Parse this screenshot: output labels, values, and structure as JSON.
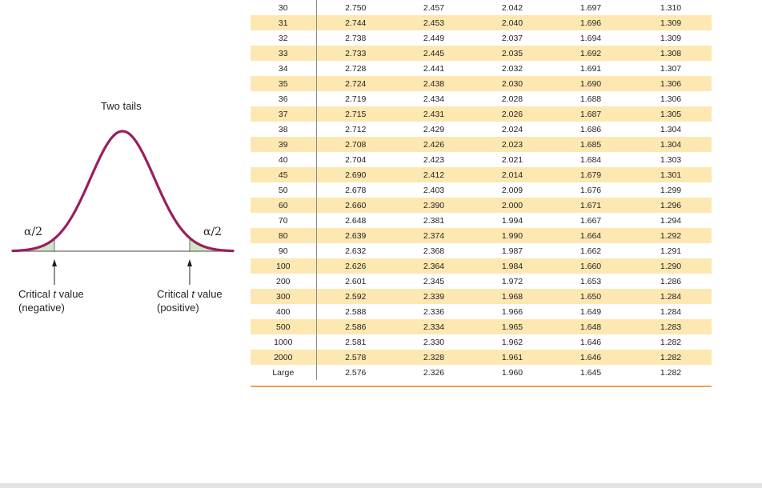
{
  "figure": {
    "title": "Two tails",
    "alpha_left": "α/2",
    "alpha_right": "α/2",
    "critical_left": {
      "line1_prefix": "Critical ",
      "line1_var": "t",
      "line1_suffix": " value",
      "line2": "(negative)"
    },
    "critical_right": {
      "line1_prefix": "Critical ",
      "line1_var": "t",
      "line1_suffix": " value",
      "line2": "(positive)"
    },
    "colors": {
      "curve": "#9b1e5e",
      "tail_fill": "#cde8c3",
      "axis": "#6d6e70"
    }
  },
  "table": {
    "shade_color": "#fde8b2",
    "rows": [
      {
        "df": "30",
        "values": [
          "2.750",
          "2.457",
          "2.042",
          "1.697",
          "1.310"
        ]
      },
      {
        "df": "31",
        "values": [
          "2.744",
          "2.453",
          "2.040",
          "1.696",
          "1.309"
        ]
      },
      {
        "df": "32",
        "values": [
          "2.738",
          "2.449",
          "2.037",
          "1.694",
          "1.309"
        ]
      },
      {
        "df": "33",
        "values": [
          "2.733",
          "2.445",
          "2.035",
          "1.692",
          "1.308"
        ]
      },
      {
        "df": "34",
        "values": [
          "2.728",
          "2.441",
          "2.032",
          "1.691",
          "1.307"
        ]
      },
      {
        "df": "35",
        "values": [
          "2.724",
          "2.438",
          "2.030",
          "1.690",
          "1.306"
        ]
      },
      {
        "df": "36",
        "values": [
          "2.719",
          "2.434",
          "2.028",
          "1.688",
          "1.306"
        ]
      },
      {
        "df": "37",
        "values": [
          "2.715",
          "2.431",
          "2.026",
          "1.687",
          "1.305"
        ]
      },
      {
        "df": "38",
        "values": [
          "2.712",
          "2.429",
          "2.024",
          "1.686",
          "1.304"
        ]
      },
      {
        "df": "39",
        "values": [
          "2.708",
          "2.426",
          "2.023",
          "1.685",
          "1.304"
        ]
      },
      {
        "df": "40",
        "values": [
          "2.704",
          "2.423",
          "2.021",
          "1.684",
          "1.303"
        ]
      },
      {
        "df": "45",
        "values": [
          "2.690",
          "2.412",
          "2.014",
          "1.679",
          "1.301"
        ]
      },
      {
        "df": "50",
        "values": [
          "2.678",
          "2.403",
          "2.009",
          "1.676",
          "1.299"
        ]
      },
      {
        "df": "60",
        "values": [
          "2.660",
          "2.390",
          "2.000",
          "1.671",
          "1.296"
        ]
      },
      {
        "df": "70",
        "values": [
          "2.648",
          "2.381",
          "1.994",
          "1.667",
          "1.294"
        ]
      },
      {
        "df": "80",
        "values": [
          "2.639",
          "2.374",
          "1.990",
          "1.664",
          "1.292"
        ]
      },
      {
        "df": "90",
        "values": [
          "2.632",
          "2.368",
          "1.987",
          "1.662",
          "1.291"
        ]
      },
      {
        "df": "100",
        "values": [
          "2.626",
          "2.364",
          "1.984",
          "1.660",
          "1.290"
        ]
      },
      {
        "df": "200",
        "values": [
          "2.601",
          "2.345",
          "1.972",
          "1.653",
          "1.286"
        ]
      },
      {
        "df": "300",
        "values": [
          "2.592",
          "2.339",
          "1.968",
          "1.650",
          "1.284"
        ]
      },
      {
        "df": "400",
        "values": [
          "2.588",
          "2.336",
          "1.966",
          "1.649",
          "1.284"
        ]
      },
      {
        "df": "500",
        "values": [
          "2.586",
          "2.334",
          "1.965",
          "1.648",
          "1.283"
        ]
      },
      {
        "df": "1000",
        "values": [
          "2.581",
          "2.330",
          "1.962",
          "1.646",
          "1.282"
        ]
      },
      {
        "df": "2000",
        "values": [
          "2.578",
          "2.328",
          "1.961",
          "1.646",
          "1.282"
        ]
      },
      {
        "df": "Large",
        "values": [
          "2.576",
          "2.326",
          "1.960",
          "1.645",
          "1.282"
        ]
      }
    ]
  }
}
